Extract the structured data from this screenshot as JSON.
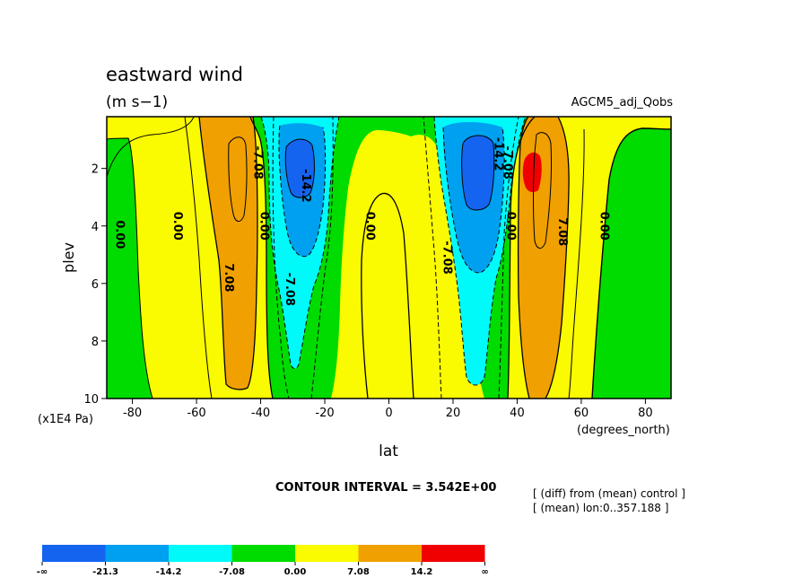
{
  "chart_data": {
    "type": "heatmap",
    "title": "eastward wind",
    "units": "(m s−1)",
    "dataset": "AGCM5_adj_Qobs",
    "xlabel": "lat",
    "xunit": "(degrees_north)",
    "ylabel": "plev",
    "yunit": "(x1E4 Pa)",
    "xlim": [
      -88,
      88
    ],
    "ylim": [
      10,
      0.2
    ],
    "xticks": [
      "-80",
      "-60",
      "-40",
      "-20",
      "0",
      "20",
      "40",
      "60",
      "80"
    ],
    "yticks": [
      "2",
      "4",
      "6",
      "8",
      "10"
    ],
    "contour_interval_text": "CONTOUR INTERVAL = 3.542E+00",
    "notes": [
      "[ (diff) from (mean) control ]",
      "[ (mean) lon:0..357.188 ]"
    ],
    "contour_labels": [
      {
        "text": "0.00",
        "lat": -85,
        "plev": 4.3
      },
      {
        "text": "0.00",
        "lat": -67,
        "plev": 4.0
      },
      {
        "text": "7.08",
        "lat": -51,
        "plev": 5.8
      },
      {
        "text": "0.00",
        "lat": -40,
        "plev": 4.0
      },
      {
        "text": "-7.08",
        "lat": -42,
        "plev": 1.8
      },
      {
        "text": "-14.2",
        "lat": -27,
        "plev": 2.6
      },
      {
        "text": "-7.08",
        "lat": -32,
        "plev": 6.2
      },
      {
        "text": "0.00",
        "lat": -7,
        "plev": 4.0
      },
      {
        "text": "-7.08",
        "lat": 17,
        "plev": 5.1
      },
      {
        "text": "-14.2",
        "lat": 33,
        "plev": 1.5
      },
      {
        "text": "-7.08",
        "lat": 36,
        "plev": 1.8
      },
      {
        "text": "0.00",
        "lat": 37,
        "plev": 4.0
      },
      {
        "text": "7.08",
        "lat": 53,
        "plev": 4.2
      },
      {
        "text": "0.00",
        "lat": 66,
        "plev": 4.0
      }
    ],
    "colorbar": {
      "colors": [
        "#1464f0",
        "#00a0f0",
        "#00fafa",
        "#00dc00",
        "#fafa00",
        "#f0a000",
        "#f00000"
      ],
      "labels": [
        "-∞",
        "-21.3",
        "-14.2",
        "-7.08",
        "0.00",
        "7.08",
        "14.2",
        "∞"
      ]
    },
    "regions": [
      {
        "level": "yellow",
        "color": "#fafa00"
      },
      {
        "level": "green",
        "color": "#00dc00"
      },
      {
        "level": "orange",
        "color": "#f0a000"
      },
      {
        "level": "cyan",
        "color": "#00fafa"
      },
      {
        "level": "lightblue",
        "color": "#00a0f0"
      },
      {
        "level": "blue",
        "color": "#1464f0"
      },
      {
        "level": "red",
        "color": "#f00000"
      }
    ]
  }
}
